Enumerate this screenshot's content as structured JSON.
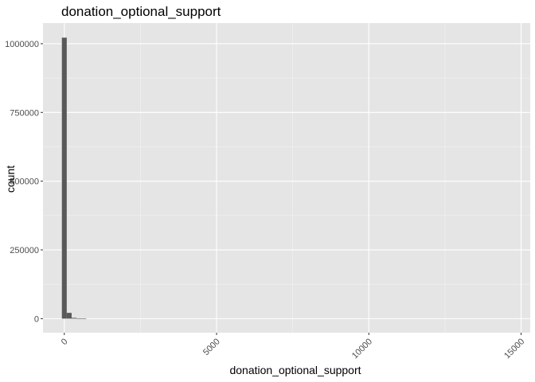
{
  "chart_data": {
    "type": "bar",
    "title": "donation_optional_support",
    "xlabel": "donation_optional_support",
    "ylabel": "count",
    "xlim": [
      -700,
      15300
    ],
    "ylim": [
      -51000,
      1075000
    ],
    "x_ticks": [
      0,
      5000,
      10000,
      15000
    ],
    "x_tick_labels": [
      "0",
      "5000",
      "10000",
      "15000"
    ],
    "y_ticks": [
      0,
      250000,
      500000,
      750000,
      1000000
    ],
    "y_tick_labels": [
      "0",
      "250000",
      "500000",
      "750000",
      "1000000"
    ],
    "x_tick_rotation": -45,
    "grid": true,
    "panel_background": "#e5e5e5",
    "bar_color": "#595959",
    "bins": [
      {
        "x0": -80,
        "x1": 80,
        "count": 1022000
      },
      {
        "x0": 80,
        "x1": 240,
        "count": 21000
      },
      {
        "x0": 240,
        "x1": 400,
        "count": 3000
      },
      {
        "x0": 400,
        "x1": 560,
        "count": 1200
      },
      {
        "x0": 560,
        "x1": 720,
        "count": 600
      }
    ]
  }
}
